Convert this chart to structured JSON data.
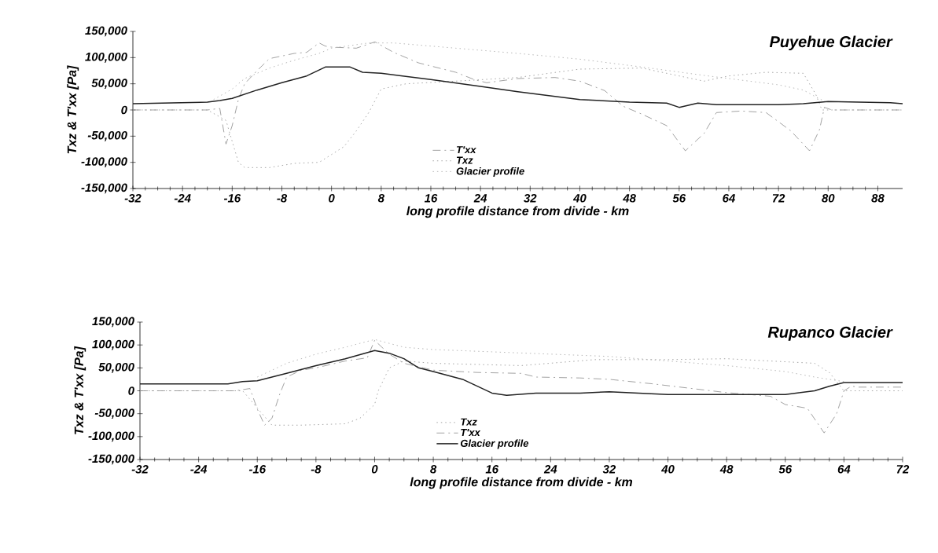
{
  "chart_data": [
    {
      "type": "line",
      "title": "Puyehue Glacier",
      "xlabel": "long profile distance from divide - km",
      "ylabel": "Txz & T'xx [Pa]",
      "xlim": [
        -32,
        92
      ],
      "ylim": [
        -150000,
        150000
      ],
      "xticks": [
        -32,
        -24,
        -16,
        -8,
        0,
        8,
        16,
        24,
        32,
        40,
        48,
        56,
        64,
        72,
        80,
        88
      ],
      "yticks": [
        {
          "value": -150000,
          "label": "-150,000"
        },
        {
          "value": -100000,
          "label": "-100,000"
        },
        {
          "value": -50000,
          "label": "-50,000"
        },
        0,
        {
          "value": 50000,
          "label": "50,000"
        },
        {
          "value": 100000,
          "label": "100,000"
        },
        {
          "value": 150000,
          "label": "150,000"
        }
      ],
      "legend": "bottom",
      "series": [
        {
          "name": "T'xx",
          "color": "#8a8a8a",
          "line_style": "dashed",
          "x": [
            -32,
            -20,
            -18,
            -17,
            -16,
            -15,
            -14,
            -12,
            -10,
            -6,
            -4,
            -2,
            -1,
            0,
            4,
            7,
            10,
            14,
            20,
            23,
            25,
            30,
            36,
            40,
            44,
            47,
            50,
            54,
            57,
            60,
            62,
            66,
            70,
            74,
            77,
            78.6,
            79.4,
            80.6,
            92
          ],
          "values": [
            0,
            0,
            3000,
            -65000,
            -30000,
            20000,
            50000,
            75000,
            98000,
            108000,
            110000,
            128000,
            122000,
            120000,
            118000,
            130000,
            110000,
            90000,
            72000,
            58000,
            52000,
            60000,
            62000,
            55000,
            37000,
            7000,
            -8000,
            -30000,
            -78000,
            -45000,
            -5000,
            -2000,
            -5000,
            -40000,
            -78000,
            -38000,
            5000,
            0,
            0
          ]
        },
        {
          "name": "Txz",
          "color": "#9a9a9a",
          "line_style": "dotted",
          "x": [
            -32,
            -20,
            -17,
            -15,
            -14,
            -10,
            -6,
            -2,
            0,
            2,
            4,
            6,
            8,
            12,
            20,
            30,
            40,
            50,
            56,
            60,
            64,
            70,
            76,
            78,
            79,
            92
          ],
          "values": [
            0,
            0,
            -20000,
            -100000,
            -110000,
            -110000,
            -102000,
            -100000,
            -85000,
            -70000,
            -40000,
            -5000,
            40000,
            50000,
            55000,
            62000,
            78000,
            80000,
            65000,
            55000,
            65000,
            72000,
            70000,
            30000,
            0,
            0
          ]
        },
        {
          "name": "Glacier profile",
          "color": "#b0b0b0",
          "line_style": "dotted",
          "x": [
            -19,
            -16,
            -14,
            -10,
            -6,
            -2,
            0,
            6,
            10,
            20,
            30,
            40,
            50,
            60,
            72,
            76,
            78,
            79.5
          ],
          "values": [
            20000,
            40000,
            60000,
            80000,
            95000,
            108000,
            118000,
            128000,
            128000,
            118000,
            108000,
            97000,
            82000,
            66000,
            48000,
            38000,
            25000,
            16000
          ]
        },
        {
          "color": "#222222",
          "line_style": "solid",
          "x": [
            -32,
            -20,
            -18,
            -16,
            -12,
            -8,
            -4,
            -1,
            3,
            5,
            8,
            16,
            24,
            30,
            40,
            48,
            54,
            56,
            59,
            62,
            72,
            76,
            80,
            90,
            92
          ],
          "values": [
            12000,
            15000,
            18000,
            22000,
            38000,
            52000,
            65000,
            82000,
            82000,
            72000,
            70000,
            58000,
            45000,
            35000,
            20000,
            15000,
            13000,
            5000,
            13000,
            10000,
            10000,
            12000,
            16000,
            14000,
            12000
          ]
        }
      ]
    },
    {
      "type": "line",
      "title": "Rupanco Glacier",
      "xlabel": "long profile distance from divide - km",
      "ylabel": "Txz & T'xx [Pa]",
      "xlim": [
        -32,
        72
      ],
      "ylim": [
        -150000,
        150000
      ],
      "xticks": [
        -32,
        -24,
        -16,
        -8,
        0,
        8,
        16,
        24,
        32,
        40,
        48,
        56,
        64,
        72
      ],
      "yticks": [
        {
          "value": -150000,
          "label": "-150,000"
        },
        {
          "value": -100000,
          "label": "-100,000"
        },
        {
          "value": -50000,
          "label": "-50,000"
        },
        0,
        {
          "value": 50000,
          "label": "50,000"
        },
        {
          "value": 100000,
          "label": "100,000"
        },
        {
          "value": 150000,
          "label": "150,000"
        }
      ],
      "legend": "bottom",
      "series": [
        {
          "name": "Txz",
          "color": "#9a9a9a",
          "line_style": "dotted",
          "x": [
            -32,
            -18,
            -14,
            -10,
            -4,
            -2,
            0,
            0.5,
            2,
            4,
            8,
            20,
            30,
            40,
            48,
            60,
            62,
            63,
            64,
            72
          ],
          "values": [
            0,
            0,
            -75000,
            -75000,
            -72000,
            -60000,
            -30000,
            0,
            50000,
            65000,
            60000,
            55000,
            68000,
            68000,
            70000,
            60000,
            40000,
            20000,
            0,
            0
          ]
        },
        {
          "name": "T'xx",
          "color": "#8a8a8a",
          "line_style": "dashed",
          "x": [
            -32,
            -19,
            -17,
            -16,
            -15,
            -14,
            -13,
            -12,
            -10,
            -8,
            -4,
            -1,
            0,
            2,
            4,
            8,
            14,
            20,
            22,
            28,
            32,
            38,
            48,
            54,
            56,
            59,
            61.3,
            63,
            64,
            65,
            66,
            72
          ],
          "values": [
            0,
            0,
            5000,
            -40000,
            -75000,
            -60000,
            -10000,
            30000,
            45000,
            50000,
            65000,
            72000,
            110000,
            80000,
            60000,
            45000,
            40000,
            38000,
            30000,
            28000,
            25000,
            15000,
            -4000,
            -12000,
            -30000,
            -38000,
            -92000,
            -50000,
            0,
            10000,
            8000,
            8000
          ]
        },
        {
          "name": "Glacier profile",
          "color": "#222222",
          "line_style": "solid",
          "x": [
            -32,
            -20,
            -18,
            -16,
            -12,
            -8,
            -4,
            0,
            2,
            4,
            6,
            8,
            12,
            16,
            18,
            22,
            28,
            32,
            36,
            40,
            48,
            56,
            60,
            62,
            64,
            72
          ],
          "values": [
            15000,
            15000,
            20000,
            22000,
            38000,
            55000,
            70000,
            88000,
            82000,
            70000,
            50000,
            42000,
            25000,
            -5000,
            -10000,
            -5000,
            -5000,
            -2000,
            -5000,
            -8000,
            -8000,
            -8000,
            0,
            10000,
            18000,
            18000
          ]
        },
        {
          "color": "#b0b0b0",
          "line_style": "dotted",
          "x": [
            -16,
            -12,
            -8,
            -4,
            0,
            4,
            8,
            16,
            24,
            32,
            40,
            48,
            56,
            60,
            64
          ],
          "values": [
            30000,
            60000,
            80000,
            95000,
            112000,
            95000,
            90000,
            85000,
            80000,
            75000,
            65000,
            55000,
            42000,
            30000,
            20000
          ]
        }
      ]
    }
  ]
}
